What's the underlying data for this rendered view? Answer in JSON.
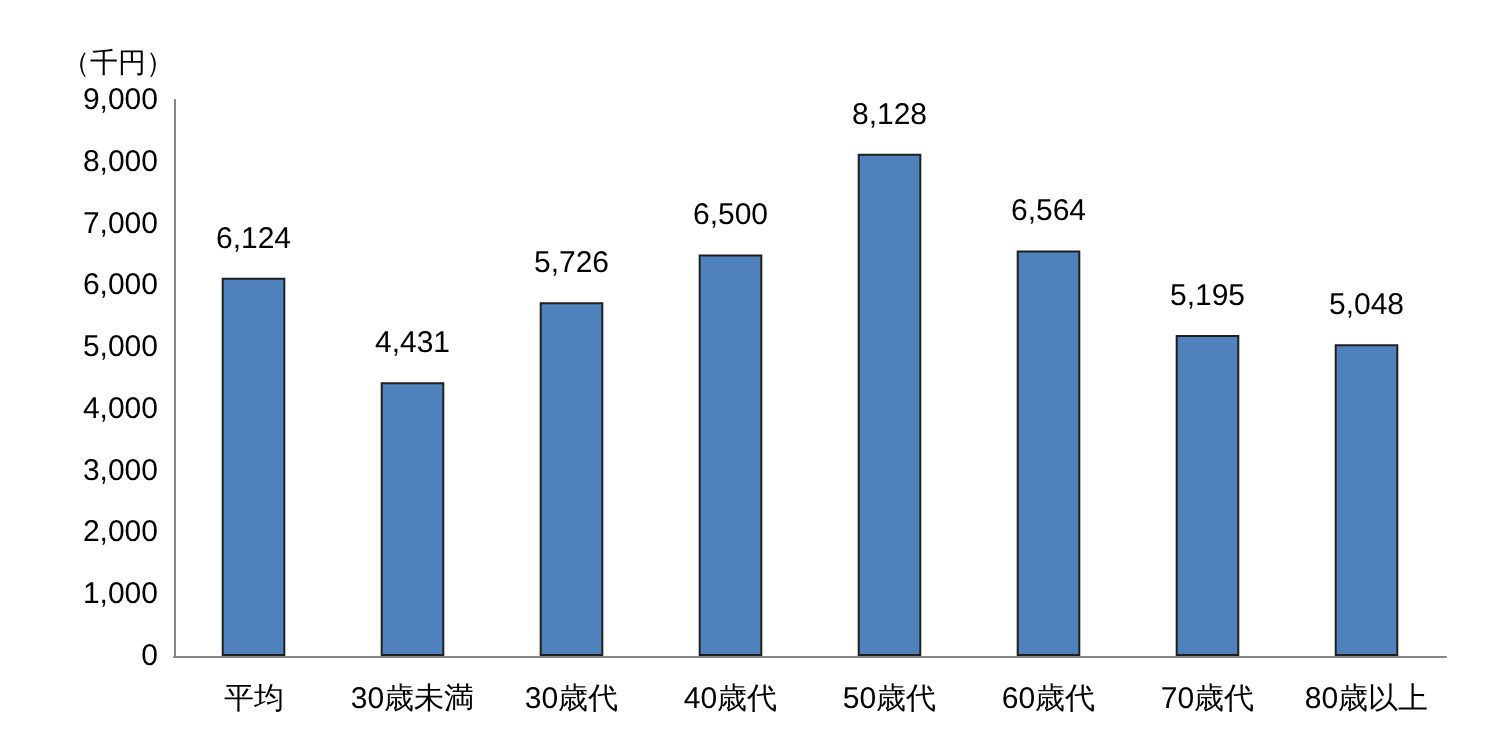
{
  "chart_data": {
    "type": "bar",
    "ylabel": "（千円）",
    "categories": [
      "平均",
      "30歳未満",
      "30歳代",
      "40歳代",
      "50歳代",
      "60歳代",
      "70歳代",
      "80歳以上"
    ],
    "values": [
      6124,
      4431,
      5726,
      6500,
      8128,
      6564,
      5195,
      5048
    ],
    "value_labels": [
      "6,124",
      "4,431",
      "5,726",
      "6,500",
      "8,128",
      "6,564",
      "5,195",
      "5,048"
    ],
    "color": "#4f81bd",
    "ylim": [
      0,
      9000
    ],
    "yticks": [
      {
        "value": 0,
        "label": "0"
      },
      {
        "value": 1000,
        "label": "1,000"
      },
      {
        "value": 2000,
        "label": "2,000"
      },
      {
        "value": 3000,
        "label": "3,000"
      },
      {
        "value": 4000,
        "label": "4,000"
      },
      {
        "value": 5000,
        "label": "5,000"
      },
      {
        "value": 6000,
        "label": "6,000"
      },
      {
        "value": 7000,
        "label": "7,000"
      },
      {
        "value": 8000,
        "label": "8,000"
      },
      {
        "value": 9000,
        "label": "9,000"
      }
    ],
    "tick_labels": "xy"
  }
}
